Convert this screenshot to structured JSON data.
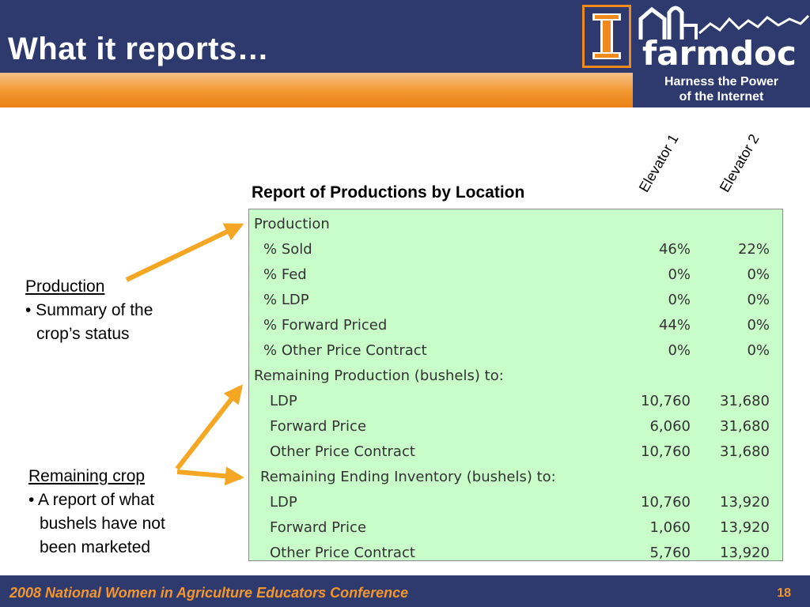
{
  "slide": {
    "title": "What it reports…",
    "footer": "2008 National Women in Agriculture Educators Conference",
    "page_number": "18"
  },
  "logo": {
    "icon": "illinois-i-icon",
    "name": "farmdoc",
    "tagline_line1": "Harness the Power",
    "tagline_line2": "of the Internet"
  },
  "report": {
    "title": "Report of Productions by Location",
    "columns": [
      "Elevator 1",
      "Elevator 2"
    ],
    "rows": [
      {
        "label": "Production",
        "v1": "",
        "v2": ""
      },
      {
        "label": "% Sold",
        "v1": "46%",
        "v2": "22%"
      },
      {
        "label": "% Fed",
        "v1": "0%",
        "v2": "0%"
      },
      {
        "label": "% LDP",
        "v1": "0%",
        "v2": "0%"
      },
      {
        "label": "% Forward Priced",
        "v1": "44%",
        "v2": "0%"
      },
      {
        "label": "% Other Price Contract",
        "v1": "0%",
        "v2": "0%"
      },
      {
        "label": "Remaining Production (bushels) to:",
        "v1": "",
        "v2": ""
      },
      {
        "label": "LDP",
        "v1": "10,760",
        "v2": "31,680"
      },
      {
        "label": "Forward Price",
        "v1": "6,060",
        "v2": "31,680"
      },
      {
        "label": "Other Price Contract",
        "v1": "10,760",
        "v2": "31,680"
      },
      {
        "label": "Remaining Ending Inventory (bushels) to:",
        "v1": "",
        "v2": ""
      },
      {
        "label": "LDP",
        "v1": "10,760",
        "v2": "13,920"
      },
      {
        "label": "Forward Price",
        "v1": "1,060",
        "v2": "13,920"
      },
      {
        "label": "Other Price Contract",
        "v1": "5,760",
        "v2": "13,920"
      }
    ]
  },
  "notes": {
    "production": {
      "heading": "Production",
      "line1": "• Summary of the",
      "line2": "crop’s status"
    },
    "remaining": {
      "heading": "Remaining crop",
      "line1": "• A report of what",
      "line2": "bushels have not",
      "line3": "been marketed"
    }
  },
  "colors": {
    "header": "#2e3a6e",
    "accent": "#f3962e",
    "table_bg": "#c8fcc8",
    "arrow": "#f5a623"
  }
}
